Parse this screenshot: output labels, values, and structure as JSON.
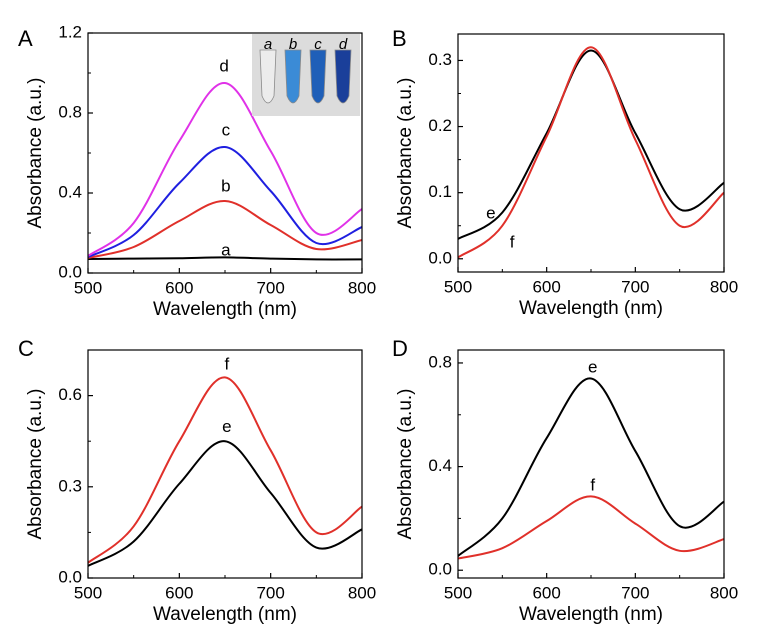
{
  "chart_data": [
    {
      "panel": "A",
      "type": "line",
      "xlabel": "Wavelength (nm)",
      "ylabel": "Absorbance (a.u.)",
      "xlim": [
        500,
        800
      ],
      "ylim": [
        0,
        1.2
      ],
      "xticks": [
        500,
        600,
        700,
        800
      ],
      "yticks": [
        0.0,
        0.4,
        0.8,
        1.2
      ],
      "ytick_labels": [
        "0.0",
        "0.4",
        "0.8",
        "1.2"
      ],
      "grid": false,
      "inset": {
        "kind": "photo of four sample tubes",
        "labels": [
          "a",
          "b",
          "c",
          "d"
        ]
      },
      "series": [
        {
          "label": "a",
          "color": "#000000",
          "x": [
            500,
            550,
            600,
            650,
            700,
            750,
            800
          ],
          "y": [
            0.07,
            0.072,
            0.074,
            0.078,
            0.072,
            0.068,
            0.068
          ]
        },
        {
          "label": "b",
          "color": "#e0302a",
          "x": [
            500,
            550,
            600,
            650,
            700,
            750,
            800
          ],
          "y": [
            0.075,
            0.13,
            0.26,
            0.36,
            0.24,
            0.12,
            0.165
          ]
        },
        {
          "label": "c",
          "color": "#1f1fe0",
          "x": [
            500,
            550,
            600,
            650,
            700,
            750,
            800
          ],
          "y": [
            0.08,
            0.19,
            0.45,
            0.63,
            0.41,
            0.15,
            0.23
          ]
        },
        {
          "label": "d",
          "color": "#e032e8",
          "x": [
            500,
            550,
            600,
            650,
            700,
            750,
            800
          ],
          "y": [
            0.085,
            0.25,
            0.66,
            0.95,
            0.61,
            0.2,
            0.32
          ]
        }
      ]
    },
    {
      "panel": "B",
      "type": "line",
      "xlabel": "Wavelength (nm)",
      "ylabel": "Absorbance (a.u.)",
      "xlim": [
        500,
        800
      ],
      "ylim": [
        -0.02,
        0.34
      ],
      "xticks": [
        500,
        600,
        700,
        800
      ],
      "yticks": [
        0.0,
        0.1,
        0.2,
        0.3
      ],
      "ytick_labels": [
        "0.0",
        "0.1",
        "0.2",
        "0.3"
      ],
      "grid": false,
      "series": [
        {
          "label": "e",
          "color": "#000000",
          "x": [
            500,
            550,
            600,
            650,
            700,
            750,
            800
          ],
          "y": [
            0.03,
            0.07,
            0.19,
            0.315,
            0.19,
            0.075,
            0.115
          ]
        },
        {
          "label": "f",
          "color": "#e0302a",
          "x": [
            500,
            550,
            600,
            650,
            700,
            750,
            800
          ],
          "y": [
            0.002,
            0.05,
            0.185,
            0.32,
            0.18,
            0.05,
            0.1
          ]
        }
      ]
    },
    {
      "panel": "C",
      "type": "line",
      "xlabel": "Wavelength (nm)",
      "ylabel": "Absorbance (a.u.)",
      "xlim": [
        500,
        800
      ],
      "ylim": [
        0,
        0.75
      ],
      "xticks": [
        500,
        600,
        700,
        800
      ],
      "yticks": [
        0.0,
        0.3,
        0.6
      ],
      "ytick_labels": [
        "0.0",
        "0.3",
        "0.6"
      ],
      "grid": false,
      "series": [
        {
          "label": "e",
          "color": "#000000",
          "x": [
            500,
            550,
            600,
            650,
            700,
            750,
            800
          ],
          "y": [
            0.04,
            0.12,
            0.31,
            0.45,
            0.28,
            0.1,
            0.16
          ]
        },
        {
          "label": "f",
          "color": "#e0302a",
          "x": [
            500,
            550,
            600,
            650,
            700,
            750,
            800
          ],
          "y": [
            0.05,
            0.17,
            0.45,
            0.66,
            0.42,
            0.15,
            0.235
          ]
        }
      ]
    },
    {
      "panel": "D",
      "type": "line",
      "xlabel": "Wavelength (nm)",
      "ylabel": "Absorbance (a.u.)",
      "xlim": [
        500,
        800
      ],
      "ylim": [
        -0.03,
        0.85
      ],
      "xticks": [
        500,
        600,
        700,
        800
      ],
      "yticks": [
        0.0,
        0.4,
        0.8
      ],
      "ytick_labels": [
        "0.0",
        "0.4",
        "0.8"
      ],
      "grid": false,
      "series": [
        {
          "label": "e",
          "color": "#000000",
          "x": [
            500,
            550,
            600,
            650,
            700,
            750,
            800
          ],
          "y": [
            0.055,
            0.2,
            0.51,
            0.74,
            0.46,
            0.17,
            0.265
          ]
        },
        {
          "label": "f",
          "color": "#e0302a",
          "x": [
            500,
            550,
            600,
            650,
            700,
            750,
            800
          ],
          "y": [
            0.045,
            0.085,
            0.19,
            0.285,
            0.18,
            0.075,
            0.12
          ]
        }
      ]
    }
  ]
}
